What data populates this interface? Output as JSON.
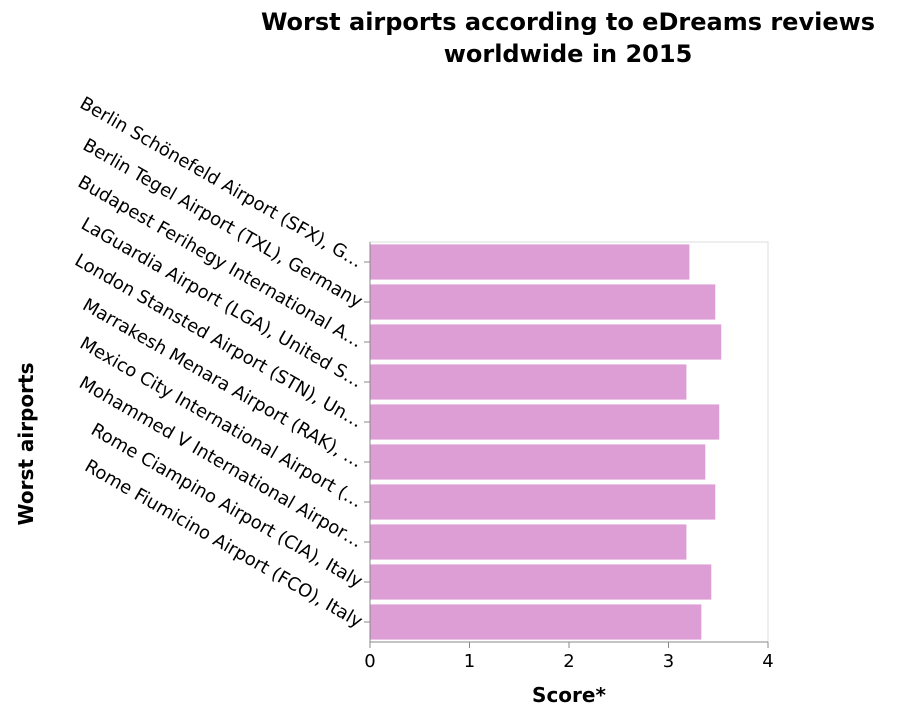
{
  "chart_data": {
    "type": "bar",
    "orientation": "horizontal",
    "title": [
      "Worst airports according to eDreams reviews",
      "worldwide in 2015"
    ],
    "xlabel": "Score*",
    "ylabel": "Worst airports",
    "xlim": [
      0,
      4
    ],
    "x_ticks": [
      "0",
      "1",
      "2",
      "3",
      "4"
    ],
    "grid": false,
    "bar_color": "#dd9ed6",
    "categories": [
      "Berlin Schönefeld Airport (SFX), G…",
      "Berlin Tegel Airport (TXL), Germany",
      "Budapest Ferihegy International A…",
      "LaGuardia Airport (LGA), United S…",
      "London Stansted Airport (STN), Un…",
      "Marrakesh Menara Airport (RAK), …",
      "Mexico City International Airport (…",
      "Mohammed V International Airpor…",
      "Rome Ciampino Airport (CIA), Italy",
      "Rome Fiumicino Airport (FCO), Italy"
    ],
    "values": [
      3.21,
      3.47,
      3.53,
      3.18,
      3.51,
      3.37,
      3.47,
      3.18,
      3.43,
      3.33
    ]
  }
}
